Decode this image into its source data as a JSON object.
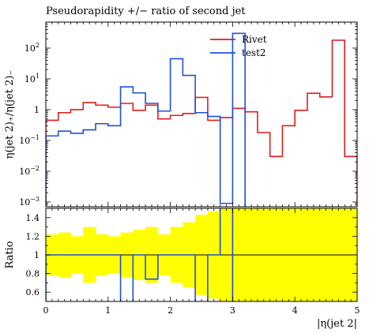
{
  "chart_data": [
    {
      "type": "step",
      "title": "Pseudorapidity +/− ratio of second jet",
      "ylabel": "η(jet 2)₊/η(jet 2)₋",
      "xlabel": "|η(jet 2|",
      "xlim": [
        0,
        5
      ],
      "ylim": [
        0.0007,
        700
      ],
      "yscale": "log",
      "legend_position": "top-right",
      "xticks": [
        "0",
        "1",
        "2",
        "3",
        "4",
        "5"
      ],
      "yticks": [
        "10⁻³",
        "10⁻²",
        "10⁻¹",
        "1",
        "10¹",
        "10²"
      ],
      "bin_edges": [
        0,
        0.2,
        0.4,
        0.6,
        0.8,
        1.0,
        1.2,
        1.4,
        1.6,
        1.8,
        2.0,
        2.2,
        2.4,
        2.6,
        2.8,
        3.0,
        3.2,
        3.4,
        3.6,
        3.8,
        4.0,
        4.2,
        4.4,
        4.6,
        4.8,
        5.0
      ],
      "series": [
        {
          "name": "Rivet",
          "color": "#dc1e1e",
          "values": [
            0.45,
            0.8,
            1.0,
            1.7,
            1.4,
            1.2,
            1.6,
            0.95,
            1.4,
            0.5,
            0.65,
            0.75,
            2.5,
            0.45,
            0.55,
            1.1,
            0.85,
            0.18,
            0.03,
            0.3,
            0.95,
            3.4,
            2.6,
            180,
            0.03
          ]
        },
        {
          "name": "test2",
          "color": "#1e50dc",
          "values": [
            0.14,
            0.2,
            0.17,
            0.22,
            0.35,
            0.3,
            5.5,
            3.5,
            1.6,
            0.9,
            45,
            13,
            0.8,
            0.6,
            0.0009,
            300,
            null,
            null,
            null,
            null,
            null,
            null,
            null,
            null,
            null
          ]
        }
      ]
    },
    {
      "type": "step",
      "ylabel": "Ratio",
      "xlabel": "|η(jet 2|",
      "xlim": [
        0,
        5
      ],
      "ylim": [
        0.5,
        1.5
      ],
      "xticks": [
        "0",
        "1",
        "2",
        "3",
        "4",
        "5"
      ],
      "yticks": [
        "0.6",
        "0.8",
        "1",
        "1.2",
        "1.4"
      ],
      "reference_line": 1,
      "band_color": "#ffff00",
      "band_halfwidth": [
        0.22,
        0.24,
        0.2,
        0.3,
        0.22,
        0.2,
        0.24,
        0.27,
        0.3,
        0.22,
        0.3,
        0.35,
        0.43,
        0.47,
        0.7,
        0.8,
        0.8,
        0.8,
        0.8,
        0.8,
        0.8,
        0.8,
        0.8,
        0.8,
        0.8
      ],
      "series": [
        {
          "name": "test2",
          "color": "#1e50dc",
          "values": [
            1,
            1,
            1,
            1,
            1,
            1,
            0.1,
            1,
            0.74,
            1,
            1,
            1,
            0.1,
            1,
            2.0,
            0.1,
            null,
            null,
            null,
            null,
            null,
            null,
            null,
            null,
            null
          ]
        }
      ]
    }
  ]
}
